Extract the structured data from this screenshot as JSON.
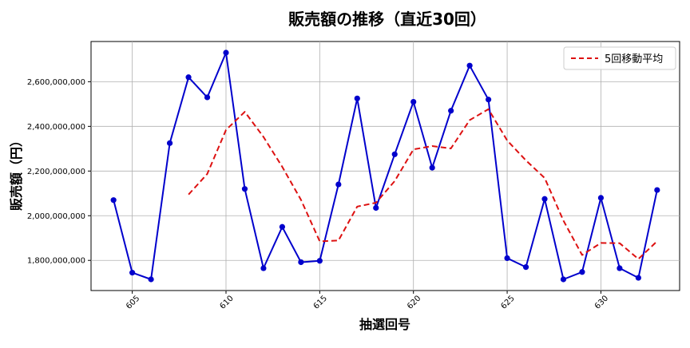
{
  "chart_data": {
    "type": "line",
    "title": "販売額の推移（直近30回）",
    "xlabel": "抽選回号",
    "ylabel": "販売額（円）",
    "grid": true,
    "legend_placement": "top-right",
    "xlim": [
      602.8,
      634.2
    ],
    "ylim": [
      1665000000,
      2780000000
    ],
    "x_ticks": [
      605,
      610,
      615,
      620,
      625,
      630
    ],
    "y_ticks": [
      1800000000,
      2000000000,
      2200000000,
      2400000000,
      2600000000
    ],
    "y_tick_labels": [
      "1,800,000,000",
      "2,000,000,000",
      "2,200,000,000",
      "2,400,000,000",
      "2,600,000,000"
    ],
    "x": [
      604,
      605,
      606,
      607,
      608,
      609,
      610,
      611,
      612,
      613,
      614,
      615,
      616,
      617,
      618,
      619,
      620,
      621,
      622,
      623,
      624,
      625,
      626,
      627,
      628,
      629,
      630,
      631,
      632,
      633
    ],
    "series": [
      {
        "name": "",
        "color": "#0000cc",
        "style": "solid-marker",
        "x": [
          604,
          605,
          606,
          607,
          608,
          609,
          610,
          611,
          612,
          613,
          614,
          615,
          616,
          617,
          618,
          619,
          620,
          621,
          622,
          623,
          624,
          625,
          626,
          627,
          628,
          629,
          630,
          631,
          632,
          633
        ],
        "values": [
          2070000000,
          1745000000,
          1715000000,
          2325000000,
          2620000000,
          2530000000,
          2730000000,
          2120000000,
          1765000000,
          1950000000,
          1792000000,
          1798000000,
          2140000000,
          2525000000,
          2035000000,
          2275000000,
          2510000000,
          2215000000,
          2470000000,
          2672000000,
          2520000000,
          1810000000,
          1770000000,
          2075000000,
          1715000000,
          1748000000,
          2080000000,
          1765000000,
          1722000000,
          2115000000
        ]
      },
      {
        "name": "5回移動平均",
        "color": "#dd1111",
        "style": "dashed",
        "x": [
          608,
          609,
          610,
          611,
          612,
          613,
          614,
          615,
          616,
          617,
          618,
          619,
          620,
          621,
          622,
          623,
          624,
          625,
          626,
          627,
          628,
          629,
          630,
          631,
          632,
          633
        ],
        "values": [
          2095000000,
          2187000000,
          2384000000,
          2465000000,
          2353000000,
          2219000000,
          2071000000,
          1885000000,
          1889000000,
          2041000000,
          2058000000,
          2155000000,
          2297000000,
          2312000000,
          2301000000,
          2428000000,
          2477000000,
          2337000000,
          2248000000,
          2169000000,
          1978000000,
          1824000000,
          1878000000,
          1877000000,
          1806000000,
          1886000000
        ]
      }
    ]
  }
}
